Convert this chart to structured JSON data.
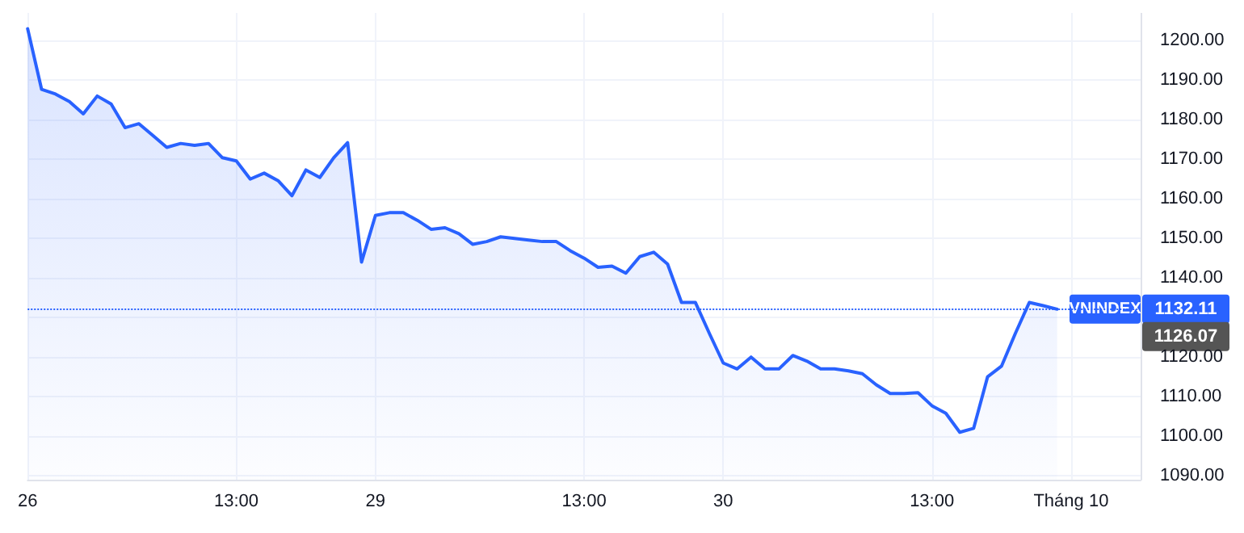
{
  "chart_data": {
    "type": "area",
    "categories": [
      "26",
      null,
      null,
      null,
      null,
      null,
      null,
      null,
      null,
      null,
      null,
      null,
      null,
      null,
      null,
      "13:00",
      null,
      null,
      null,
      null,
      null,
      null,
      null,
      null,
      null,
      "29",
      null,
      null,
      null,
      null,
      null,
      null,
      null,
      null,
      null,
      null,
      null,
      null,
      null,
      null,
      "13:00",
      null,
      null,
      null,
      null,
      null,
      null,
      null,
      null,
      null,
      "30",
      null,
      null,
      null,
      null,
      null,
      null,
      null,
      null,
      null,
      null,
      null,
      null,
      null,
      null,
      "13:00",
      null,
      null,
      null,
      null,
      null,
      null,
      null,
      null,
      null,
      "Tháng 10",
      null,
      null,
      null,
      null,
      null
    ],
    "series": [
      {
        "name": "VNINDEX",
        "color": "#2962ff",
        "values": [
          1203,
          1187.7,
          1186.5,
          1184.6,
          1181.5,
          1186,
          1184,
          1178,
          1179,
          1176,
          1173,
          1174,
          1173.5,
          1174,
          1170.4,
          1169.6,
          1165,
          1166.5,
          1164.6,
          1160.8,
          1167.3,
          1165.4,
          1170.4,
          1174.2,
          1144,
          1155.8,
          1156.5,
          1156.5,
          1154.6,
          1152.3,
          1152.7,
          1151.2,
          1148.5,
          1149.2,
          1150.4,
          1150,
          1149.6,
          1149.2,
          1149.2,
          1146.9,
          1145,
          1142.7,
          1143,
          1141.2,
          1145.4,
          1146.5,
          1143.5,
          1133.8,
          1133.8,
          1126,
          1118.5,
          1117,
          1120,
          1117,
          1117,
          1120.4,
          1119,
          1117,
          1117,
          1116.5,
          1115.8,
          1113,
          1110.8,
          1110.8,
          1111,
          1107.7,
          1105.8,
          1101,
          1102,
          1115,
          1117.7,
          1126,
          1133.8,
          1133,
          1132.11,
          null,
          null,
          null,
          null,
          null,
          null
        ]
      }
    ],
    "ylim": [
      1089,
      1207
    ],
    "yticks": [
      {
        "value": 1090,
        "label": "1090.00"
      },
      {
        "value": 1100,
        "label": "1100.00"
      },
      {
        "value": 1110,
        "label": "1110.00"
      },
      {
        "value": 1120,
        "label": "1120.00"
      },
      {
        "value": 1130,
        "label": null
      },
      {
        "value": 1140,
        "label": "1140.00"
      },
      {
        "value": 1150,
        "label": "1150.00"
      },
      {
        "value": 1160,
        "label": "1160.00"
      },
      {
        "value": 1170,
        "label": "1170.00"
      },
      {
        "value": 1180,
        "label": "1180.00"
      },
      {
        "value": 1190,
        "label": "1190.00"
      },
      {
        "value": 1200,
        "label": "1200.00"
      }
    ],
    "ref_lines": [
      {
        "axis": "y",
        "value": 1132.11,
        "label": "1132.11",
        "color": "#2962ff",
        "line_style": "dotted"
      }
    ],
    "annotations": [
      "1126.07"
    ],
    "grid": true,
    "marker": "none",
    "line_style": "solid",
    "legend": "right"
  }
}
